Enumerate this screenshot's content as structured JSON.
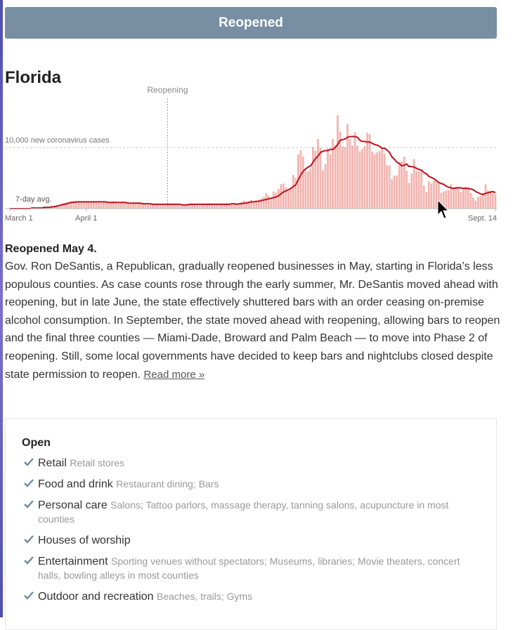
{
  "banner": {
    "title": "Reopened"
  },
  "state": {
    "name": "Florida"
  },
  "chart_data": {
    "type": "bar",
    "xlim": [
      0,
      197
    ],
    "xticks": [
      {
        "value": 0,
        "label": "March 1"
      },
      {
        "value": 31,
        "label": "April 1"
      },
      {
        "value": 197,
        "label": "Sept. 14"
      }
    ],
    "ylim": [
      0,
      16000
    ],
    "yticks": [
      {
        "value": 10000,
        "label": "10,000 new coronavirus cases"
      }
    ],
    "grid": true,
    "annotations": [
      {
        "text": "Reopening",
        "x": 64
      }
    ],
    "series": [
      {
        "color": "#f0a39c",
        "values": [
          0,
          0,
          0,
          0,
          0,
          0,
          0,
          0,
          100,
          100,
          100,
          100,
          100,
          200,
          200,
          200,
          300,
          300,
          400,
          500,
          600,
          800,
          900,
          1000,
          1100,
          1200,
          1300,
          1000,
          1100,
          1000,
          1100,
          1200,
          1000,
          1200,
          1000,
          1100,
          1100,
          900,
          1100,
          1000,
          1100,
          1000,
          1200,
          900,
          800,
          900,
          1000,
          1000,
          800,
          700,
          900,
          800,
          900,
          1000,
          800,
          700,
          600,
          700,
          700,
          800,
          700,
          600,
          700,
          600,
          700,
          600,
          800,
          700,
          600,
          500,
          700,
          600,
          700,
          800,
          700,
          700,
          700,
          500,
          800,
          700,
          700,
          900,
          800,
          700,
          600,
          600,
          700,
          800,
          900,
          800,
          700,
          700,
          700,
          700,
          1100,
          1300,
          1200,
          1200,
          1400,
          1000,
          1100,
          1400,
          1700,
          1900,
          2500,
          2100,
          1800,
          2800,
          2600,
          3200,
          4000,
          4100,
          3500,
          2900,
          3300,
          5500,
          5000,
          8900,
          9600,
          8500,
          6100,
          6100,
          6600,
          10100,
          9500,
          11400,
          10000,
          6300,
          7300,
          9900,
          8900,
          11400,
          10400,
          15300,
          12600,
          10200,
          10100,
          13900,
          11400,
          10300,
          12500,
          10300,
          9400,
          9800,
          10200,
          12400,
          12200,
          9300,
          8900,
          9200,
          9400,
          9900,
          9000,
          7100,
          7100,
          4800,
          5400,
          5400,
          7600,
          7700,
          8500,
          6200,
          4200,
          5800,
          8100,
          6200,
          6100,
          6400,
          3800,
          2700,
          4500,
          4100,
          4600,
          4600,
          4300,
          2600,
          2800,
          3000,
          3000,
          4000,
          3400,
          3600,
          3600,
          2700,
          3200,
          3600,
          3200,
          2600,
          1800,
          1300,
          1900,
          2100,
          2600,
          4000,
          3000,
          2900,
          2600,
          2400
        ]
      },
      {
        "name": "7-day avg.",
        "color": "#c0101a",
        "values": [
          0,
          0,
          0,
          0,
          0,
          0,
          0,
          0,
          0,
          100,
          100,
          100,
          100,
          100,
          200,
          200,
          200,
          300,
          300,
          400,
          500,
          600,
          700,
          800,
          900,
          1000,
          1000,
          1100,
          1100,
          1100,
          1100,
          1100,
          1100,
          1100,
          1100,
          1100,
          1100,
          1100,
          1100,
          1100,
          1000,
          1000,
          1000,
          1000,
          1000,
          1000,
          1000,
          1000,
          900,
          900,
          900,
          900,
          900,
          900,
          800,
          800,
          800,
          800,
          700,
          700,
          700,
          700,
          700,
          700,
          700,
          700,
          700,
          700,
          700,
          700,
          600,
          600,
          600,
          700,
          700,
          700,
          700,
          700,
          700,
          700,
          700,
          700,
          700,
          700,
          700,
          700,
          700,
          700,
          700,
          700,
          800,
          800,
          700,
          800,
          800,
          900,
          900,
          1000,
          1100,
          1100,
          1200,
          1200,
          1300,
          1400,
          1500,
          1600,
          1700,
          1800,
          1900,
          2100,
          2400,
          2700,
          2900,
          3100,
          3300,
          3600,
          3900,
          4700,
          5500,
          6100,
          6500,
          6800,
          7000,
          7600,
          8200,
          8600,
          9200,
          9400,
          9500,
          9500,
          9700,
          9700,
          10000,
          10500,
          11200,
          11300,
          11400,
          11700,
          11800,
          11800,
          11800,
          11700,
          11200,
          11000,
          11000,
          10900,
          10900,
          10700,
          10500,
          10400,
          10200,
          9900,
          9900,
          9600,
          9200,
          8500,
          8100,
          7600,
          7400,
          7000,
          7100,
          7300,
          6900,
          6900,
          6800,
          6600,
          6400,
          6300,
          5900,
          5700,
          5300,
          5100,
          4900,
          4600,
          4300,
          4100,
          4000,
          3700,
          3500,
          3400,
          3300,
          3400,
          3400,
          3400,
          3300,
          3300,
          3300,
          3200,
          3100,
          2800,
          2600,
          2400,
          2300,
          2500,
          2600,
          2700,
          2800,
          2600
        ]
      }
    ]
  },
  "summary": {
    "heading": "Reopened May 4.",
    "text": "Gov. Ron DeSantis, a Republican, gradually reopened businesses in May, starting in Florida’s less populous counties. As case counts rose through the early summer, Mr. DeSantis moved ahead with reopening, but in late June, the state effectively shuttered bars with an order ceasing on-premise alcohol consumption. In September, the state moved ahead with reopening, allowing bars to reopen and the final three counties — Miami-Dade, Broward and Palm Beach — to move into Phase 2 of reopening. Still, some local governments have decided to keep bars and nightclubs closed despite state permission to reopen.",
    "link": "Read more »"
  },
  "open_list": {
    "title": "Open",
    "items": [
      {
        "name": "Retail",
        "detail": "Retail stores"
      },
      {
        "name": "Food and drink",
        "detail": "Restaurant dining; Bars"
      },
      {
        "name": "Personal care",
        "detail": "Salons; Tattoo parlors, massage therapy, tanning salons, acupuncture in most counties"
      },
      {
        "name": "Houses of worship",
        "detail": ""
      },
      {
        "name": "Entertainment",
        "detail": "Sporting venues without spectators; Museums, libraries; Movie theaters, concert halls, bowling alleys in most counties"
      },
      {
        "name": "Outdoor and recreation",
        "detail": "Beaches, trails; Gyms"
      }
    ]
  }
}
